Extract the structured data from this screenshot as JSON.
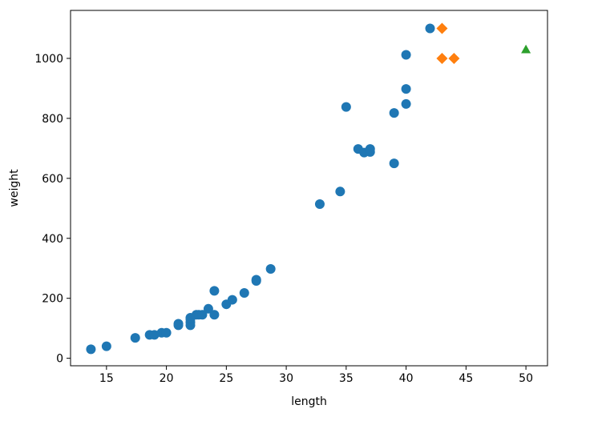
{
  "chart_data": {
    "type": "scatter",
    "title": "",
    "xlabel": "length",
    "ylabel": "weight",
    "xlim": [
      12,
      51.8
    ],
    "ylim": [
      -25,
      1160
    ],
    "xticks": [
      15,
      20,
      25,
      30,
      35,
      40,
      45,
      50
    ],
    "yticks": [
      0,
      200,
      400,
      600,
      800,
      1000
    ],
    "grid": false,
    "legend": "none",
    "series": [
      {
        "marker": "circle",
        "color": "#1f77b4",
        "points": [
          {
            "x": 13.7,
            "y": 30
          },
          {
            "x": 15.0,
            "y": 40
          },
          {
            "x": 17.4,
            "y": 68
          },
          {
            "x": 18.6,
            "y": 78
          },
          {
            "x": 19.0,
            "y": 78
          },
          {
            "x": 19.6,
            "y": 85
          },
          {
            "x": 20.0,
            "y": 85
          },
          {
            "x": 21.0,
            "y": 110
          },
          {
            "x": 21.0,
            "y": 115
          },
          {
            "x": 22.0,
            "y": 110
          },
          {
            "x": 22.0,
            "y": 120
          },
          {
            "x": 22.0,
            "y": 130
          },
          {
            "x": 22.0,
            "y": 135
          },
          {
            "x": 22.5,
            "y": 145
          },
          {
            "x": 22.7,
            "y": 145
          },
          {
            "x": 23.0,
            "y": 145
          },
          {
            "x": 23.5,
            "y": 165
          },
          {
            "x": 24.0,
            "y": 145
          },
          {
            "x": 24.0,
            "y": 225
          },
          {
            "x": 25.0,
            "y": 180
          },
          {
            "x": 25.5,
            "y": 195
          },
          {
            "x": 26.5,
            "y": 218
          },
          {
            "x": 27.5,
            "y": 258
          },
          {
            "x": 27.5,
            "y": 262
          },
          {
            "x": 28.7,
            "y": 298
          },
          {
            "x": 32.8,
            "y": 514
          },
          {
            "x": 34.5,
            "y": 556
          },
          {
            "x": 35.0,
            "y": 838
          },
          {
            "x": 36.0,
            "y": 698
          },
          {
            "x": 36.5,
            "y": 686
          },
          {
            "x": 37.0,
            "y": 688
          },
          {
            "x": 37.0,
            "y": 698
          },
          {
            "x": 39.0,
            "y": 650
          },
          {
            "x": 39.0,
            "y": 818
          },
          {
            "x": 40.0,
            "y": 848
          },
          {
            "x": 40.0,
            "y": 898
          },
          {
            "x": 40.0,
            "y": 1012
          },
          {
            "x": 42.0,
            "y": 1100
          }
        ]
      },
      {
        "marker": "diamond",
        "color": "#ff7f0e",
        "points": [
          {
            "x": 43.0,
            "y": 1100
          },
          {
            "x": 43.0,
            "y": 1000
          },
          {
            "x": 44.0,
            "y": 1000
          }
        ]
      },
      {
        "marker": "triangle",
        "color": "#2ca02c",
        "points": [
          {
            "x": 50.0,
            "y": 1030
          }
        ]
      }
    ]
  }
}
